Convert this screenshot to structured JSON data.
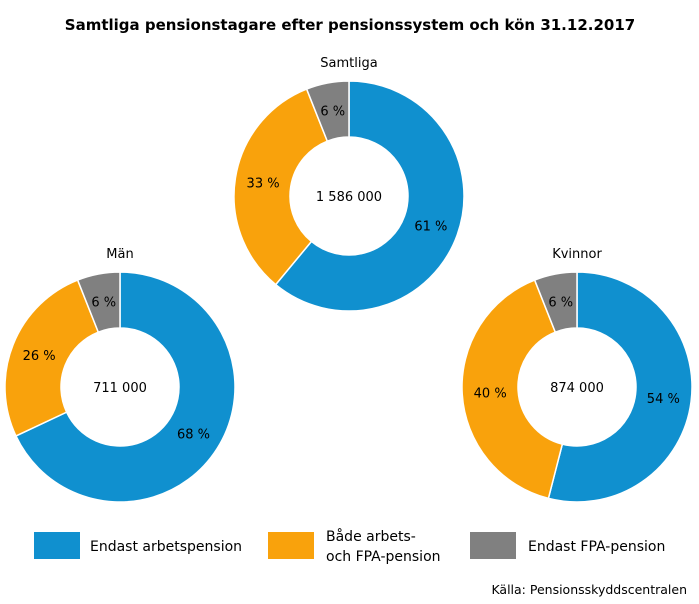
{
  "chart_data": {
    "type": "pie",
    "variant": "donut",
    "title": "Samtliga pensionstagare efter pensionssystem och kön 31.12.2017",
    "source": "Källa: Pensionsskyddscentralen",
    "series_colors": [
      "#1090cf",
      "#f9a20c",
      "#808080"
    ],
    "legend": [
      {
        "label_lines": [
          "Endast arbetspension"
        ]
      },
      {
        "label_lines": [
          "Både arbets-",
          "och FPA-pension"
        ]
      },
      {
        "label_lines": [
          "Endast FPA-pension"
        ]
      }
    ],
    "charts": [
      {
        "name": "Samtliga",
        "total": "1 586 000",
        "values": [
          61,
          33,
          6
        ],
        "labels": [
          "61 %",
          "33 %",
          "6 %"
        ]
      },
      {
        "name": "Män",
        "total": "711 000",
        "values": [
          68,
          26,
          6
        ],
        "labels": [
          "68 %",
          "26 %",
          "6 %"
        ]
      },
      {
        "name": "Kvinnor",
        "total": "874 000",
        "values": [
          54,
          40,
          6
        ],
        "labels": [
          "54 %",
          "40 %",
          "6 %"
        ]
      }
    ]
  }
}
